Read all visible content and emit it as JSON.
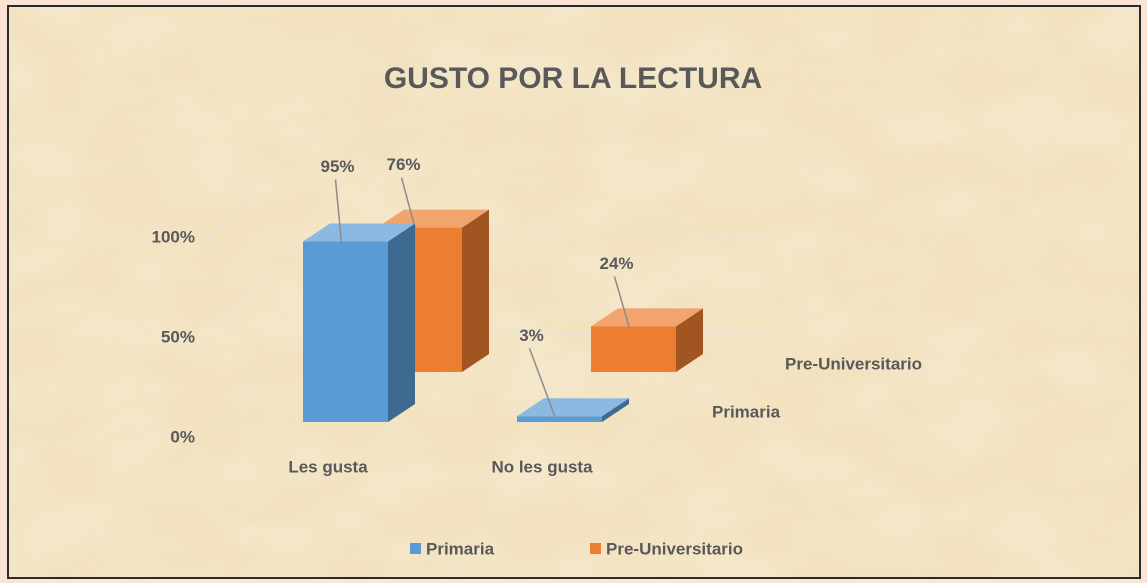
{
  "chart_data": {
    "type": "bar3d",
    "title": "GUSTO POR LA LECTURA",
    "categories": [
      "Les gusta",
      "No les gusta"
    ],
    "series": [
      {
        "name": "Primaria",
        "color": "#5b9bd5",
        "values": [
          95,
          3
        ],
        "value_labels": [
          "95%",
          "3%"
        ]
      },
      {
        "name": "Pre-Universitario",
        "color": "#ed7d31",
        "values": [
          76,
          24
        ],
        "value_labels": [
          "76%",
          "24%"
        ]
      }
    ],
    "ylim": [
      0,
      100
    ],
    "yticks": [
      {
        "value": 0,
        "label": "0%"
      },
      {
        "value": 50,
        "label": "50%"
      },
      {
        "value": 100,
        "label": "100%"
      }
    ],
    "grid": true,
    "legend": "bottom"
  }
}
